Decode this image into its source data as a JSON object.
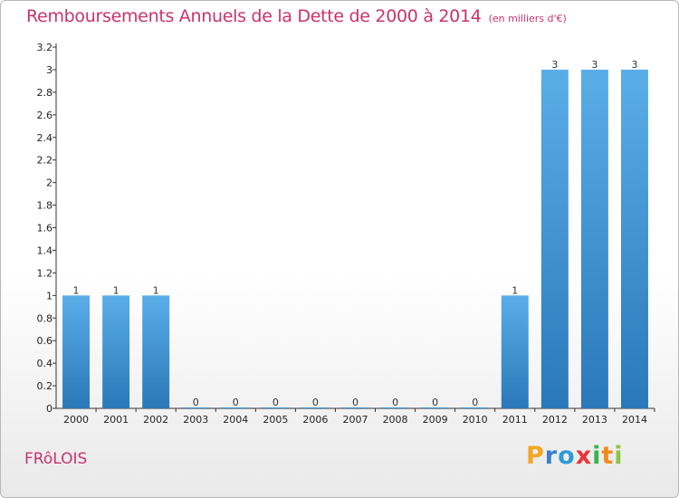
{
  "header": {
    "title": "Remboursements Annuels de la Dette de 2000 à 2014",
    "unit": "(en milliers d'€)"
  },
  "footer": {
    "commune": "FRôLOIS",
    "logo": {
      "letters": [
        "P",
        "r",
        "o",
        "x",
        "i",
        "t",
        "i"
      ],
      "colors": [
        "#f5a623",
        "#3a7fd0",
        "#2e9bd6",
        "#e8343a",
        "#3ab54a",
        "#f08a1c",
        "#8cc63f"
      ]
    }
  },
  "chart_data": {
    "type": "bar",
    "categories": [
      "2000",
      "2001",
      "2002",
      "2003",
      "2004",
      "2005",
      "2006",
      "2007",
      "2008",
      "2009",
      "2010",
      "2011",
      "2012",
      "2013",
      "2014"
    ],
    "values": [
      1,
      1,
      1,
      0,
      0,
      0,
      0,
      0,
      0,
      0,
      0,
      1,
      3,
      3,
      3
    ],
    "data_labels": [
      "1",
      "1",
      "1",
      "0",
      "0",
      "0",
      "0",
      "0",
      "0",
      "0",
      "0",
      "1",
      "3",
      "3",
      "3"
    ],
    "ylim": [
      0,
      3.2
    ],
    "yticks": [
      0,
      0.2,
      0.4,
      0.6,
      0.8,
      1,
      1.2,
      1.4,
      1.6,
      1.8,
      2,
      2.2,
      2.4,
      2.6,
      2.8,
      3,
      3.2
    ],
    "ytick_labels": [
      "0",
      "0.2",
      "0.4",
      "0.6",
      "0.8",
      "1",
      "1.2",
      "1.4",
      "1.6",
      "1.8",
      "2",
      "2.2",
      "2.4",
      "2.6",
      "2.8",
      "3",
      "3.2"
    ],
    "grid": false,
    "colors": {
      "bar_top": "#5aaee8",
      "bar_bottom": "#2a78b8"
    }
  }
}
